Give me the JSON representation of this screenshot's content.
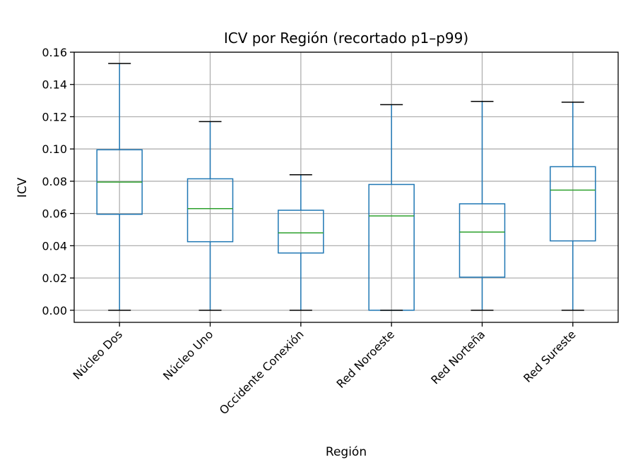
{
  "chart_data": {
    "type": "boxplot",
    "title": "ICV por Región (recortado p1–p99)",
    "xlabel": "Región",
    "ylabel": "ICV",
    "ylim": [
      -0.0075,
      0.16
    ],
    "yticks": [
      0.0,
      0.02,
      0.04,
      0.06,
      0.08,
      0.1,
      0.12,
      0.14,
      0.16
    ],
    "ytick_labels": [
      "0.00",
      "0.02",
      "0.04",
      "0.06",
      "0.08",
      "0.10",
      "0.12",
      "0.14",
      "0.16"
    ],
    "grid": true,
    "categories": [
      "Núcleo Dos",
      "Núcleo Uno",
      "Occidente Conexión",
      "Red Noroeste",
      "Red Norteña",
      "Red Sureste"
    ],
    "boxes": [
      {
        "min": 0.0,
        "q1": 0.0595,
        "median": 0.0795,
        "q3": 0.0995,
        "max": 0.153
      },
      {
        "min": 0.0,
        "q1": 0.0425,
        "median": 0.063,
        "q3": 0.0815,
        "max": 0.117
      },
      {
        "min": 0.0,
        "q1": 0.0355,
        "median": 0.048,
        "q3": 0.062,
        "max": 0.084
      },
      {
        "min": 0.0,
        "q1": 0.0,
        "median": 0.0585,
        "q3": 0.078,
        "max": 0.1275
      },
      {
        "min": 0.0,
        "q1": 0.0205,
        "median": 0.0485,
        "q3": 0.066,
        "max": 0.1295
      },
      {
        "min": 0.0,
        "q1": 0.043,
        "median": 0.0745,
        "q3": 0.089,
        "max": 0.129
      }
    ],
    "colors": {
      "box": "#1f77b4",
      "median": "#2ca02c",
      "cap": "#000000",
      "grid": "#b0b0b0"
    }
  }
}
